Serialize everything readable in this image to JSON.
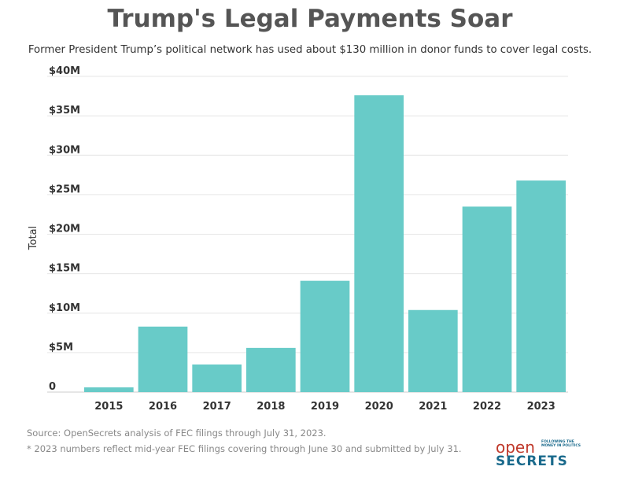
{
  "header": {
    "title": "Trump's Legal Payments Soar",
    "subtitle": "Former President Trump’s political network has used about $130 million in donor funds to cover legal costs."
  },
  "chart_data": {
    "type": "bar",
    "categories": [
      "2015",
      "2016",
      "2017",
      "2018",
      "2019",
      "2020",
      "2021",
      "2022",
      "2023"
    ],
    "values": [
      0.6,
      8.3,
      3.5,
      5.6,
      14.1,
      37.6,
      10.4,
      23.5,
      26.8
    ],
    "unit": "millions USD",
    "ylabel": "Total",
    "ylim": [
      0,
      40
    ],
    "yticks": [
      {
        "value": 0,
        "label": "0"
      },
      {
        "value": 5,
        "label": "$5M"
      },
      {
        "value": 10,
        "label": "$10M"
      },
      {
        "value": 15,
        "label": "$15M"
      },
      {
        "value": 20,
        "label": "$20M"
      },
      {
        "value": 25,
        "label": "$25M"
      },
      {
        "value": 30,
        "label": "$30M"
      },
      {
        "value": 35,
        "label": "$35M"
      },
      {
        "value": 40,
        "label": "$40M"
      }
    ],
    "grid": true,
    "bar_color": "#68cbc8",
    "grid_color": "#e6e6e6"
  },
  "footer": {
    "source": "Source: OpenSecrets analysis of FEC filings through July 31, 2023.",
    "note": "* 2023 numbers reflect mid-year FEC filings covering through June 30 and submitted by July 31."
  },
  "logo": {
    "open": "open",
    "tagline": "FOLLOWING THE MONEY IN POLITICS",
    "secrets": "SECRETS"
  }
}
